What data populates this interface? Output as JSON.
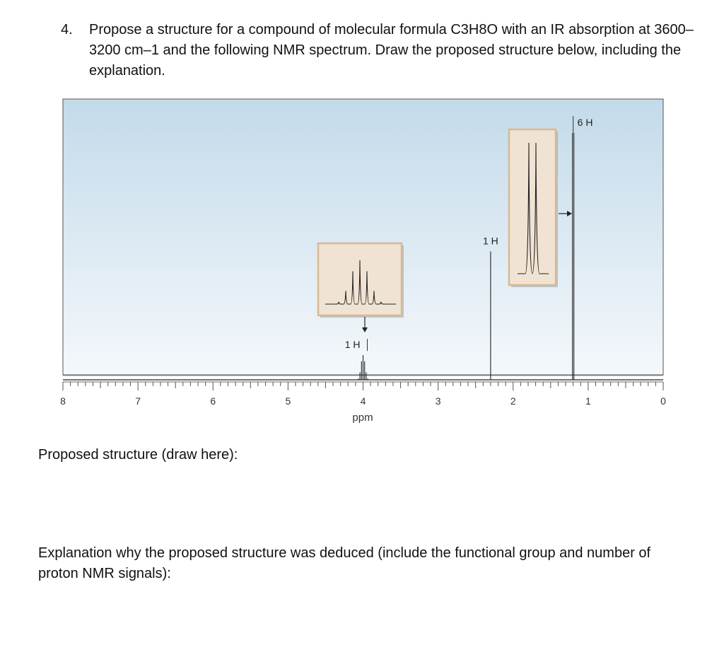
{
  "question": {
    "number": "4.",
    "text": "Propose a structure for a compound of molecular formula C3H8O with an IR absorption at 3600–3200 cm–1 and the following NMR spectrum. Draw the proposed structure below, including the explanation."
  },
  "chart_data": {
    "type": "line",
    "xlabel": "ppm",
    "xlim": [
      8,
      0
    ],
    "x_tick_labels": [
      "8",
      "7",
      "6",
      "5",
      "4",
      "3",
      "2",
      "1",
      "0"
    ],
    "peaks": [
      {
        "ppm": 4.0,
        "multiplicity": "septet",
        "integration": "1 H",
        "relative_height": 0.1
      },
      {
        "ppm": 2.3,
        "multiplicity": "singlet",
        "integration": "1 H",
        "relative_height": 0.52
      },
      {
        "ppm": 1.2,
        "multiplicity": "doublet",
        "integration": "6 H",
        "relative_height": 1.0
      }
    ],
    "insets": [
      {
        "peak": "septet",
        "shows": "expanded septet near 4.0 ppm"
      },
      {
        "peak": "doublet",
        "shows": "expanded doublet near 1.2 ppm"
      }
    ],
    "background_color_top": "#c3daea",
    "background_color_bottom": "#f4f8fb",
    "inset_fill": "#f1e3d3",
    "inset_border": "#d9b98f"
  },
  "labels": {
    "structure": "Proposed structure (draw here):",
    "explanation": "Explanation why the proposed structure was deduced (include the functional group and number of proton NMR signals):"
  }
}
